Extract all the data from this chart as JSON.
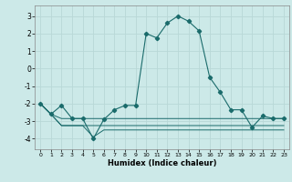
{
  "xlabel": "Humidex (Indice chaleur)",
  "xlim": [
    -0.5,
    23.5
  ],
  "ylim": [
    -4.6,
    3.6
  ],
  "yticks": [
    -4,
    -3,
    -2,
    -1,
    0,
    1,
    2,
    3
  ],
  "xticks": [
    0,
    1,
    2,
    3,
    4,
    5,
    6,
    7,
    8,
    9,
    10,
    11,
    12,
    13,
    14,
    15,
    16,
    17,
    18,
    19,
    20,
    21,
    22,
    23
  ],
  "background_color": "#cce9e8",
  "grid_color": "#b8d8d7",
  "line_color": "#1a6b6b",
  "main_line_x": [
    0,
    1,
    2,
    3,
    4,
    5,
    6,
    7,
    8,
    9,
    10,
    11,
    12,
    13,
    14,
    15,
    16,
    17,
    18,
    19,
    20,
    21,
    22,
    23
  ],
  "main_line_y": [
    -2.0,
    -2.6,
    -2.1,
    -2.85,
    -2.85,
    -4.0,
    -2.9,
    -2.35,
    -2.1,
    -2.1,
    2.0,
    1.75,
    2.6,
    3.0,
    2.7,
    2.15,
    -0.5,
    -1.35,
    -2.35,
    -2.35,
    -3.35,
    -2.7,
    -2.85,
    -2.85
  ],
  "line1_x": [
    0,
    1,
    2,
    3,
    4,
    5,
    6,
    7,
    8,
    9,
    10,
    11,
    12,
    13,
    14,
    15,
    16,
    17,
    18,
    19,
    20,
    21,
    22,
    23
  ],
  "line1_y": [
    -2.0,
    -2.6,
    -2.85,
    -2.85,
    -2.85,
    -2.85,
    -2.85,
    -2.85,
    -2.85,
    -2.85,
    -2.85,
    -2.85,
    -2.85,
    -2.85,
    -2.85,
    -2.85,
    -2.85,
    -2.85,
    -2.85,
    -2.85,
    -2.85,
    -2.85,
    -2.85,
    -2.85
  ],
  "line2_x": [
    0,
    1,
    2,
    3,
    4,
    5,
    6,
    7,
    8,
    9,
    10,
    11,
    12,
    13,
    14,
    15,
    16,
    17,
    18,
    19,
    20,
    21,
    22,
    23
  ],
  "line2_y": [
    -2.0,
    -2.6,
    -3.25,
    -3.25,
    -3.25,
    -3.25,
    -3.25,
    -3.25,
    -3.25,
    -3.25,
    -3.25,
    -3.25,
    -3.25,
    -3.25,
    -3.25,
    -3.25,
    -3.25,
    -3.25,
    -3.25,
    -3.25,
    -3.25,
    -3.25,
    -3.25,
    -3.25
  ],
  "line3_x": [
    0,
    1,
    2,
    3,
    4,
    5,
    6,
    7,
    8,
    9,
    10,
    11,
    12,
    13,
    14,
    15,
    16,
    17,
    18,
    19,
    20,
    21,
    22,
    23
  ],
  "line3_y": [
    -2.0,
    -2.6,
    -3.25,
    -3.25,
    -3.25,
    -3.9,
    -3.5,
    -3.5,
    -3.5,
    -3.5,
    -3.5,
    -3.5,
    -3.5,
    -3.5,
    -3.5,
    -3.5,
    -3.5,
    -3.5,
    -3.5,
    -3.5,
    -3.5,
    -3.5,
    -3.5,
    -3.5
  ]
}
